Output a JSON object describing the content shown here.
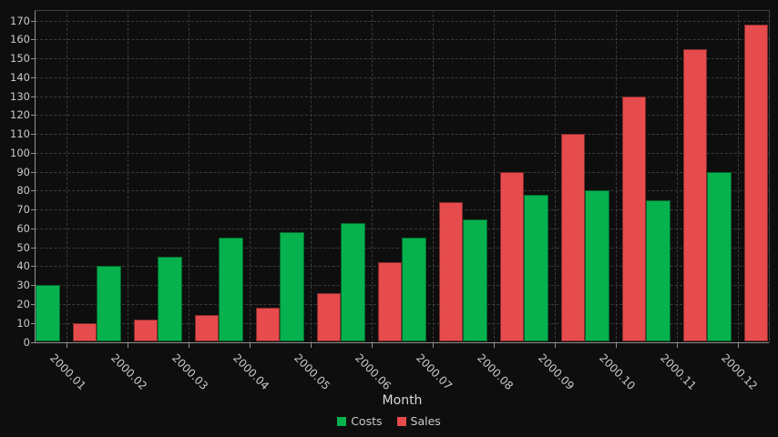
{
  "chart_data": {
    "type": "bar",
    "title": "",
    "xlabel": "Month",
    "ylabel": "",
    "categories": [
      "2000.01",
      "2000.02",
      "2000.03",
      "2000.04",
      "2000.05",
      "2000.06",
      "2000.07",
      "2000.08",
      "2000.09",
      "2000.10",
      "2000.11",
      "2000.12"
    ],
    "series": [
      {
        "name": "Costs",
        "color": "#06b14e",
        "values": [
          30,
          40,
          45,
          55,
          58,
          63,
          55,
          65,
          78,
          80,
          75,
          90
        ]
      },
      {
        "name": "Sales",
        "color": "#e64c4d",
        "values": [
          10,
          12,
          14,
          18,
          26,
          42,
          74,
          90,
          110,
          130,
          155,
          168
        ]
      }
    ],
    "ylim": [
      0,
      170
    ],
    "ytick_step": 10,
    "grid": "dashed-both-axes",
    "x_label_rotation_deg": 45,
    "legend_position": "bottom-center"
  },
  "colors": {
    "background": "#0e0e0e",
    "grid": "#3b3b3b",
    "axis_line": "#919191",
    "plot_border": "#3e3e3e",
    "tick_label": "#c9c9c9",
    "axis_title": "#d9d9d9"
  }
}
